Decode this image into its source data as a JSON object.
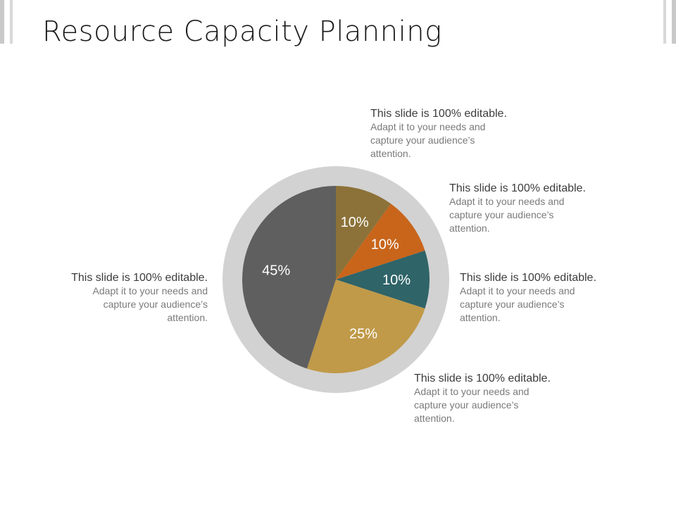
{
  "title": "Resource Capacity Planning",
  "colors": {
    "ring": "#d2d2d2",
    "slices": [
      "#8c7239",
      "#c8651b",
      "#2f6468",
      "#c09a49",
      "#5f5f5f"
    ]
  },
  "chart_data": {
    "type": "pie",
    "title": "",
    "slices": [
      {
        "label": "10%",
        "value": 10
      },
      {
        "label": "10%",
        "value": 10
      },
      {
        "label": "10%",
        "value": 10
      },
      {
        "label": "25%",
        "value": 25
      },
      {
        "label": "45%",
        "value": 45
      }
    ]
  },
  "notes": [
    {
      "heading": "This slide is 100% editable.",
      "body": "Adapt it to your needs and capture your audience’s attention."
    },
    {
      "heading": "This slide is 100% editable.",
      "body": "Adapt it to your needs and capture your audience’s attention."
    },
    {
      "heading": "This slide is 100% editable.",
      "body": "Adapt it to your needs and capture your audience’s attention."
    },
    {
      "heading": "This slide is 100% editable.",
      "body": "Adapt it to your needs and capture your audience’s attention."
    },
    {
      "heading": "This slide is 100% editable.",
      "body": "Adapt it to your needs and capture your audience’s attention."
    }
  ]
}
